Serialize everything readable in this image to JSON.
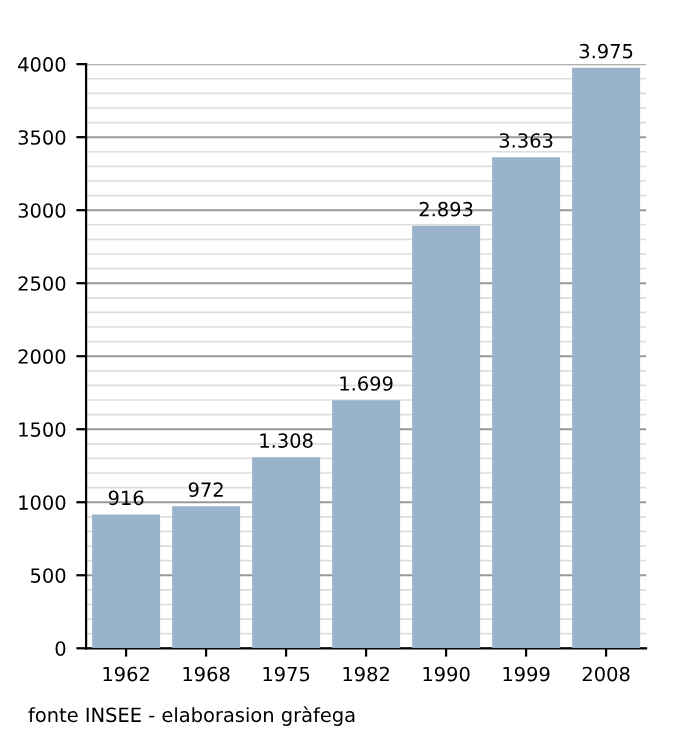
{
  "chart_data": {
    "type": "bar",
    "categories": [
      "1962",
      "1968",
      "1975",
      "1982",
      "1990",
      "1999",
      "2008"
    ],
    "values": [
      916,
      972,
      1308,
      1699,
      2893,
      3363,
      3975
    ],
    "value_labels": [
      "916",
      "972",
      "1.308",
      "1.699",
      "2.893",
      "3.363",
      "3.975"
    ],
    "color": "#9ab3cd",
    "ylim": [
      0,
      4000
    ],
    "yticks": [
      0,
      500,
      1000,
      1500,
      2000,
      2500,
      3000,
      3500,
      4000
    ],
    "grid": "y",
    "annotations": [
      "fonte INSEE - elaborasion gràfega"
    ]
  }
}
